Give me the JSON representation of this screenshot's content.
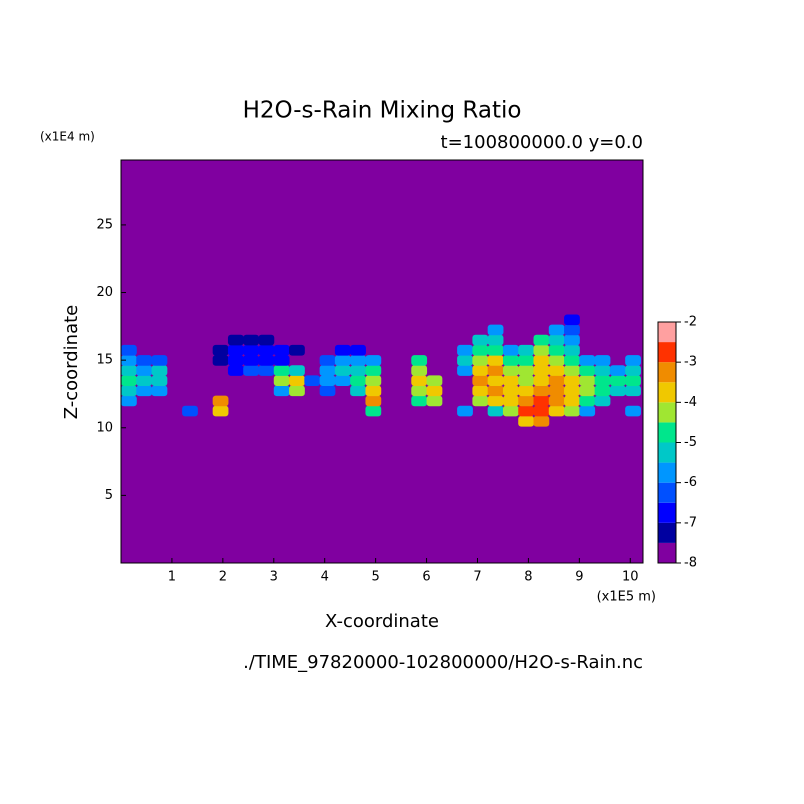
{
  "chart_data": {
    "type": "contourf",
    "title": "H2O-s-Rain Mixing Ratio",
    "subtitle": "t=100800000.0 y=0.0",
    "x_label": "X-coordinate",
    "y_label": "Z-coordinate",
    "x_unit": "(x1E5 m)",
    "y_unit": "(x1E4 m)",
    "footer": "./TIME_97820000-102800000/H2O-s-Rain.nc",
    "xlim": [
      0,
      10.25
    ],
    "ylim": [
      0,
      29.8
    ],
    "xticks": [
      1,
      2,
      3,
      4,
      5,
      6,
      7,
      8,
      9,
      10
    ],
    "yticks": [
      5,
      10,
      15,
      20,
      25
    ],
    "levels": [
      -8,
      -7.5,
      -7,
      -6.5,
      -6,
      -5.5,
      -5,
      -4.5,
      -4,
      -3.5,
      -3,
      -2.5,
      -2
    ],
    "colorbar_ticks": [
      -8,
      -7,
      -6,
      -5,
      -4,
      -3,
      -2
    ],
    "colors": [
      "#8000a0",
      "#0000a0",
      "#0000ff",
      "#0050ff",
      "#0096ff",
      "#00c8c8",
      "#00e68c",
      "#a0e632",
      "#f0c800",
      "#f08c00",
      "#ff3200",
      "#ffa0a0"
    ],
    "x": [
      0.15,
      0.45,
      0.75,
      1.05,
      1.35,
      1.65,
      1.95,
      2.25,
      2.55,
      2.85,
      3.15,
      3.45,
      3.75,
      4.05,
      4.35,
      4.65,
      4.95,
      5.25,
      5.55,
      5.85,
      6.15,
      6.45,
      6.75,
      7.05,
      7.35,
      7.65,
      7.95,
      8.25,
      8.55,
      8.85,
      9.15,
      9.45,
      9.75,
      10.05
    ],
    "z": [
      10.5,
      11.25,
      12,
      12.75,
      13.5,
      14.25,
      15,
      15.75,
      16.5,
      17.25,
      18
    ],
    "values": [
      [
        null,
        null,
        null,
        null,
        null,
        null,
        null,
        null,
        null,
        null,
        null,
        null,
        null,
        null,
        null,
        null,
        null,
        null,
        null,
        null,
        null,
        null,
        null,
        null,
        null,
        null,
        -4,
        -3.5,
        null,
        null,
        null,
        null,
        null,
        null
      ],
      [
        null,
        null,
        null,
        null,
        -6.5,
        null,
        -4,
        null,
        null,
        null,
        null,
        null,
        null,
        null,
        null,
        null,
        -5,
        null,
        null,
        null,
        null,
        null,
        -6,
        null,
        -5.5,
        -4.5,
        -3,
        -3,
        -4,
        -4.5,
        -6,
        null,
        null,
        -6
      ],
      [
        -6,
        null,
        null,
        null,
        null,
        null,
        -3.5,
        null,
        null,
        null,
        null,
        null,
        null,
        null,
        null,
        null,
        -3.5,
        null,
        null,
        -5,
        -4.5,
        null,
        null,
        -4.5,
        -4,
        -4,
        -3.5,
        -3,
        -3.5,
        -4,
        -5,
        -5.5,
        null,
        null
      ],
      [
        -5.5,
        -6,
        -6,
        null,
        null,
        null,
        null,
        null,
        null,
        null,
        -6,
        -4.5,
        null,
        -6.5,
        null,
        -5.5,
        -4,
        null,
        null,
        -4.5,
        -4,
        null,
        null,
        -4,
        -3.5,
        -4,
        -4,
        -3.5,
        -3.5,
        -4,
        -4.5,
        -5,
        -5.5,
        -5.5
      ],
      [
        -5,
        -5.5,
        -5.5,
        null,
        null,
        null,
        null,
        null,
        null,
        null,
        -4.5,
        -4,
        -6.5,
        -6,
        -6,
        -5,
        -4.5,
        null,
        null,
        -4,
        -4.5,
        null,
        null,
        -3.5,
        -4,
        -4,
        -4.5,
        -4,
        -3.5,
        -4,
        -4.5,
        -5,
        -5,
        -5
      ],
      [
        -5.5,
        -6,
        -5.5,
        null,
        null,
        null,
        null,
        -7,
        -6.5,
        -6.5,
        -5,
        -5.5,
        null,
        -6,
        -5.5,
        -5.5,
        -5,
        null,
        null,
        -4.5,
        null,
        null,
        -6,
        -4,
        -3.5,
        -4.5,
        -4.5,
        -4,
        -4,
        -4.5,
        -5,
        -5.5,
        -6,
        -5.5
      ],
      [
        -6,
        -6.5,
        -6.5,
        null,
        null,
        null,
        -7.5,
        -7,
        -7,
        -7,
        -7,
        null,
        null,
        -6.5,
        -6,
        -6,
        -6,
        null,
        null,
        -5,
        null,
        null,
        -5.5,
        -4.5,
        -4,
        -5,
        -5,
        -4,
        -4.5,
        -5,
        -6,
        -6,
        null,
        -6
      ],
      [
        -6.5,
        null,
        null,
        null,
        null,
        null,
        -7.5,
        -7,
        -7,
        -7,
        -7,
        -7.5,
        null,
        null,
        -7,
        -7,
        null,
        null,
        null,
        null,
        null,
        null,
        -6,
        -5,
        -5,
        -6,
        -5.5,
        -4.5,
        -5,
        -5.5,
        null,
        null,
        null,
        null
      ],
      [
        null,
        null,
        null,
        null,
        null,
        null,
        null,
        -7.5,
        -7.5,
        -7.5,
        null,
        null,
        null,
        null,
        null,
        null,
        null,
        null,
        null,
        null,
        null,
        null,
        null,
        -5.5,
        -5.5,
        null,
        null,
        -5,
        -5.5,
        -6,
        null,
        null,
        null,
        null
      ],
      [
        null,
        null,
        null,
        null,
        null,
        null,
        null,
        null,
        null,
        null,
        null,
        null,
        null,
        null,
        null,
        null,
        null,
        null,
        null,
        null,
        null,
        null,
        null,
        null,
        -6,
        null,
        null,
        null,
        -6,
        -6.5,
        null,
        null,
        null,
        null
      ],
      [
        null,
        null,
        null,
        null,
        null,
        null,
        null,
        null,
        null,
        null,
        null,
        null,
        null,
        null,
        null,
        null,
        null,
        null,
        null,
        null,
        null,
        null,
        null,
        null,
        null,
        null,
        null,
        null,
        null,
        -7,
        null,
        null,
        null,
        null
      ]
    ]
  }
}
